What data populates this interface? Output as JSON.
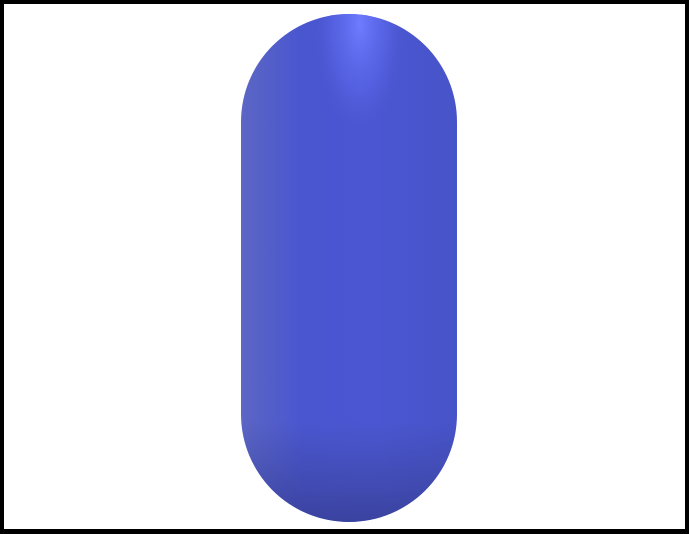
{
  "scene": {
    "frame_color": "#000000",
    "background_color": "#ffffff",
    "object": {
      "shape": "capsule",
      "orientation": "vertical",
      "colors": {
        "highlight": "#6a78ff",
        "base": "#4a56d0",
        "mid": "#4753c8",
        "shadow": "#3c46a8",
        "rim_left": "#5c66c4"
      }
    }
  }
}
